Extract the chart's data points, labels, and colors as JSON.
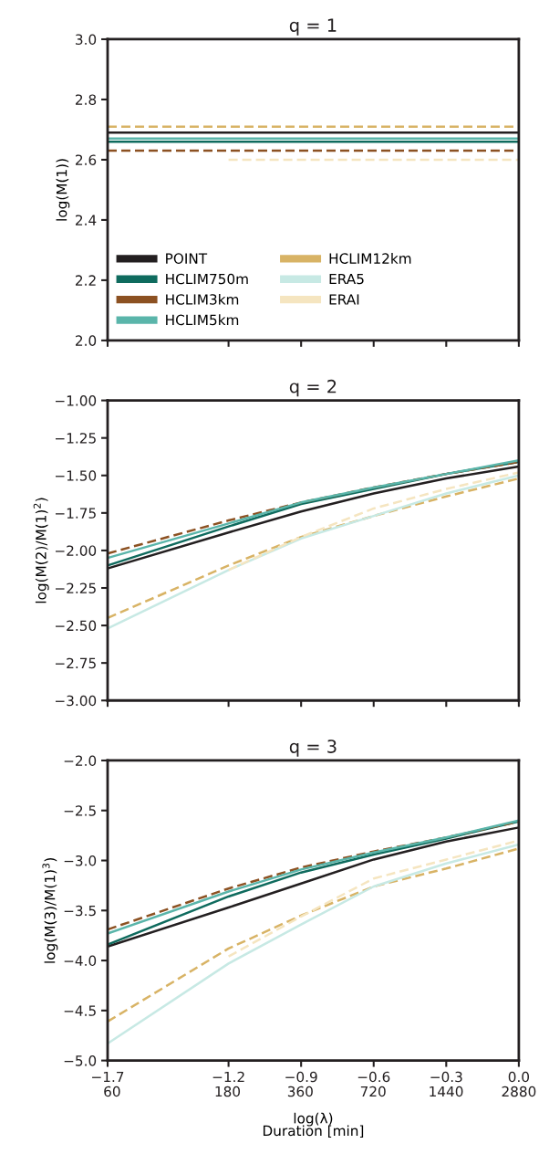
{
  "chart_data": [
    {
      "type": "line",
      "title": "q = 1",
      "ylabel": "log(M(1))",
      "x": [
        -1.7,
        -1.2,
        -0.9,
        -0.6,
        -0.3,
        0.0
      ],
      "xlim": [
        -1.7,
        0.0
      ],
      "xticks": [
        -1.7,
        -1.2,
        -0.9,
        -0.6,
        -0.3,
        0.0
      ],
      "ylim": [
        2.0,
        3.0
      ],
      "yticks": [
        {
          "value": 2.0,
          "label": "2.0"
        },
        {
          "value": 2.2,
          "label": "2.2"
        },
        {
          "value": 2.4,
          "label": "2.4"
        },
        {
          "value": 2.6,
          "label": "2.6"
        },
        {
          "value": 2.8,
          "label": "2.8"
        },
        {
          "value": 3.0,
          "label": "3.0"
        }
      ],
      "tick_labels": "y",
      "grid": false,
      "legend": "lower left",
      "series": [
        {
          "name": "POINT",
          "color": "#231f20",
          "line_style": "solid",
          "values": [
            2.69,
            2.69,
            2.69,
            2.69,
            2.69,
            2.69
          ]
        },
        {
          "name": "HCLIM750m",
          "color": "#0f6b5e",
          "line_style": "solid",
          "values": [
            2.66,
            2.66,
            2.66,
            2.66,
            2.66,
            2.66
          ]
        },
        {
          "name": "HCLIM3km",
          "color": "#8c5122",
          "line_style": "dashed",
          "values": [
            2.63,
            2.63,
            2.63,
            2.63,
            2.63,
            2.63
          ]
        },
        {
          "name": "HCLIM5km",
          "color": "#5ab5aa",
          "line_style": "solid",
          "values": [
            2.67,
            2.67,
            2.67,
            2.67,
            2.67,
            2.67
          ]
        },
        {
          "name": "HCLIM12km",
          "color": "#d8b365",
          "line_style": "dashed",
          "values": [
            2.71,
            2.71,
            2.71,
            2.71,
            2.71,
            2.71
          ]
        },
        {
          "name": "ERA5",
          "color": "#c7e9e4",
          "line_style": "solid",
          "values": [
            null,
            null,
            null,
            null,
            null,
            null
          ]
        },
        {
          "name": "ERAI",
          "color": "#f5e5c0",
          "line_style": "dashed",
          "values": [
            null,
            2.6,
            2.6,
            2.6,
            2.6,
            2.6
          ]
        }
      ]
    },
    {
      "type": "line",
      "title": "q = 2",
      "ylabel": "log(M(2)/M(1)$^{2}$)",
      "x": [
        -1.7,
        -1.2,
        -0.9,
        -0.6,
        -0.3,
        0.0
      ],
      "xlim": [
        -1.7,
        0.0
      ],
      "xticks": [
        -1.7,
        -1.2,
        -0.9,
        -0.6,
        -0.3,
        0.0
      ],
      "ylim": [
        -3.0,
        -1.0
      ],
      "yticks": [
        {
          "value": -3.0,
          "label": "−3.00"
        },
        {
          "value": -2.75,
          "label": "−2.75"
        },
        {
          "value": -2.5,
          "label": "−2.50"
        },
        {
          "value": -2.25,
          "label": "−2.25"
        },
        {
          "value": -2.0,
          "label": "−2.00"
        },
        {
          "value": -1.75,
          "label": "−1.75"
        },
        {
          "value": -1.5,
          "label": "−1.50"
        },
        {
          "value": -1.25,
          "label": "−1.25"
        },
        {
          "value": -1.0,
          "label": "−1.00"
        }
      ],
      "tick_labels": "y",
      "grid": false,
      "series": [
        {
          "color": "#231f20",
          "line_style": "solid",
          "values": [
            -2.12,
            -1.88,
            -1.74,
            -1.62,
            -1.52,
            -1.44
          ]
        },
        {
          "color": "#0f6b5e",
          "line_style": "solid",
          "values": [
            -2.1,
            -1.84,
            -1.69,
            -1.59,
            -1.49,
            -1.41
          ]
        },
        {
          "color": "#8c5122",
          "line_style": "dashed",
          "values": [
            -2.02,
            -1.8,
            -1.68,
            -1.58,
            -1.49,
            -1.41
          ]
        },
        {
          "color": "#5ab5aa",
          "line_style": "solid",
          "values": [
            -2.05,
            -1.82,
            -1.68,
            -1.58,
            -1.49,
            -1.4
          ]
        },
        {
          "color": "#d8b365",
          "line_style": "dashed",
          "values": [
            -2.45,
            -2.1,
            -1.91,
            -1.77,
            -1.64,
            -1.52
          ]
        },
        {
          "color": "#c7e9e4",
          "line_style": "solid",
          "values": [
            -2.52,
            -2.13,
            -1.92,
            -1.77,
            -1.62,
            -1.5
          ]
        },
        {
          "color": "#f5e5c0",
          "line_style": "dashed",
          "values": [
            null,
            -2.13,
            -1.91,
            -1.72,
            -1.59,
            -1.48
          ]
        }
      ]
    },
    {
      "type": "line",
      "title": "q = 3",
      "ylabel": "log(M(3)/M(1)$^{3}$)",
      "xlabel": "log(λ)\nDuration [min]",
      "x": [
        -1.7,
        -1.2,
        -0.9,
        -0.6,
        -0.3,
        0.0
      ],
      "xlim": [
        -1.7,
        0.0
      ],
      "xticks": [
        {
          "value": -1.7,
          "label": "−1.7"
        },
        {
          "value": -1.2,
          "label": "−1.2"
        },
        {
          "value": -0.9,
          "label": "−0.9"
        },
        {
          "value": -0.6,
          "label": "−0.6"
        },
        {
          "value": -0.3,
          "label": "−0.3"
        },
        {
          "value": 0.0,
          "label": "0.0"
        }
      ],
      "log": "x2",
      "x2lim": [
        57.5,
        2880
      ],
      "x2ticks": [
        60,
        180,
        360,
        720,
        1440,
        2880
      ],
      "ylim": [
        -5.0,
        -2.0
      ],
      "yticks": [
        {
          "value": -5.0,
          "label": "−5.0"
        },
        {
          "value": -4.5,
          "label": "−4.5"
        },
        {
          "value": -4.0,
          "label": "−4.0"
        },
        {
          "value": -3.5,
          "label": "−3.5"
        },
        {
          "value": -3.0,
          "label": "−3.0"
        },
        {
          "value": -2.5,
          "label": "−2.5"
        },
        {
          "value": -2.0,
          "label": "−2.0"
        }
      ],
      "grid": false,
      "series": [
        {
          "color": "#231f20",
          "line_style": "solid",
          "values": [
            -3.86,
            -3.47,
            -3.23,
            -2.99,
            -2.81,
            -2.67
          ]
        },
        {
          "color": "#0f6b5e",
          "line_style": "solid",
          "values": [
            -3.84,
            -3.36,
            -3.12,
            -2.94,
            -2.78,
            -2.61
          ]
        },
        {
          "color": "#8c5122",
          "line_style": "dashed",
          "values": [
            -3.69,
            -3.28,
            -3.07,
            -2.91,
            -2.77,
            -2.61
          ]
        },
        {
          "color": "#5ab5aa",
          "line_style": "solid",
          "values": [
            -3.73,
            -3.31,
            -3.09,
            -2.92,
            -2.77,
            -2.6
          ]
        },
        {
          "color": "#d8b365",
          "line_style": "dashed",
          "values": [
            -4.61,
            -3.88,
            -3.55,
            -3.26,
            -3.08,
            -2.88
          ]
        },
        {
          "color": "#c7e9e4",
          "line_style": "solid",
          "values": [
            -4.83,
            -4.03,
            -3.64,
            -3.26,
            -3.03,
            -2.84
          ]
        },
        {
          "color": "#f5e5c0",
          "line_style": "dashed",
          "values": [
            null,
            -3.96,
            -3.56,
            -3.18,
            -2.99,
            -2.8
          ]
        }
      ]
    }
  ]
}
